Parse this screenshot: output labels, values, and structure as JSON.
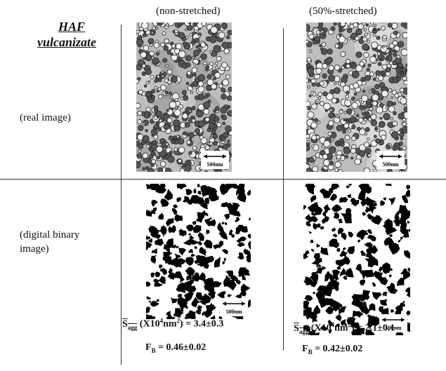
{
  "header": {
    "title_line1": "HAF",
    "title_line2": "vulcanizate"
  },
  "columns": [
    "(non-stretched)",
    "(50%-stretched)"
  ],
  "rows": [
    "(real image)",
    "(digital binary image)"
  ],
  "scale_bar": "500nm",
  "results": [
    {
      "s_symbol": "S",
      "s_sub": "agg",
      "unit_pre": "(X10",
      "unit_exp1": "4",
      "unit_mid": "nm",
      "unit_exp2": "2",
      "unit_post": ")",
      "s_value": "= 3.4±0.3",
      "f_symbol": "F",
      "f_sub": "B",
      "f_value": "= 0.46±0.02"
    },
    {
      "s_symbol": "S",
      "s_sub": "agg",
      "unit_pre": "(X10",
      "unit_exp1": "4",
      "unit_mid": "nm",
      "unit_exp2": "2",
      "unit_post": ")",
      "s_value": "= 2.1±0.1",
      "f_symbol": "F",
      "f_sub": "B",
      "f_value": "= 0.42±0.02"
    }
  ]
}
